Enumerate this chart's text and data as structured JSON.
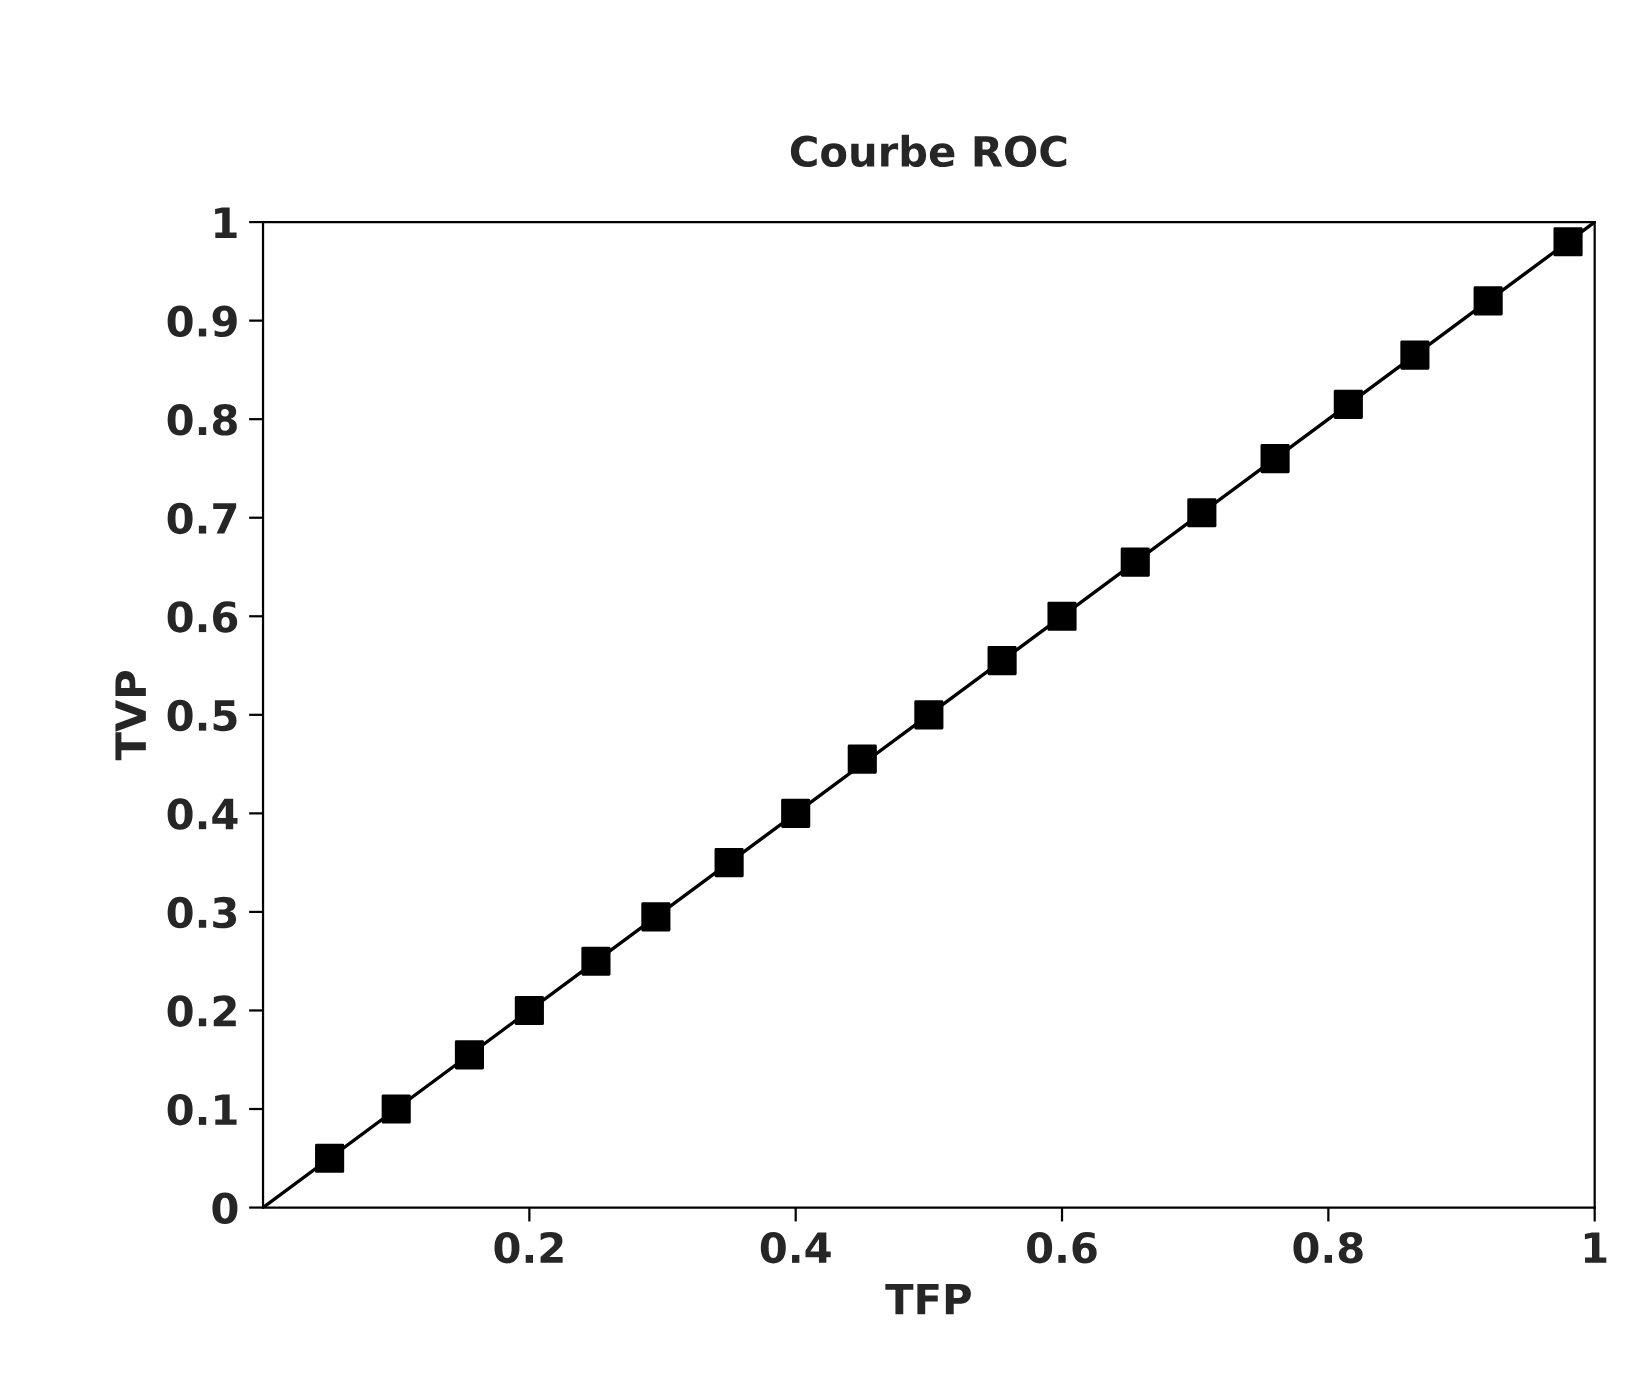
{
  "chart_data": {
    "type": "scatter",
    "title": "Courbe ROC",
    "xlabel": "TFP",
    "ylabel": "TVP",
    "series": [
      {
        "type": "line",
        "color": "#000000",
        "marker": "none",
        "x": [
          0,
          1
        ],
        "values": [
          0,
          1
        ]
      },
      {
        "color": "#000000",
        "marker": "square",
        "x": [
          0.05,
          0.1,
          0.155,
          0.2,
          0.25,
          0.295,
          0.35,
          0.4,
          0.45,
          0.5,
          0.555,
          0.6,
          0.655,
          0.705,
          0.76,
          0.815,
          0.865,
          0.92,
          0.98
        ],
        "values": [
          0.05,
          0.1,
          0.155,
          0.2,
          0.25,
          0.295,
          0.35,
          0.4,
          0.455,
          0.5,
          0.555,
          0.6,
          0.655,
          0.705,
          0.76,
          0.815,
          0.865,
          0.92,
          0.98
        ]
      }
    ],
    "xlim": [
      0,
      1
    ],
    "ylim": [
      0,
      1
    ],
    "xticks": [
      0.2,
      0.4,
      0.6,
      0.8,
      1
    ],
    "yticks": [
      0,
      0.1,
      0.2,
      0.3,
      0.4,
      0.5,
      0.6,
      0.7,
      0.8,
      0.9,
      1
    ],
    "grid": false,
    "legend": false
  }
}
